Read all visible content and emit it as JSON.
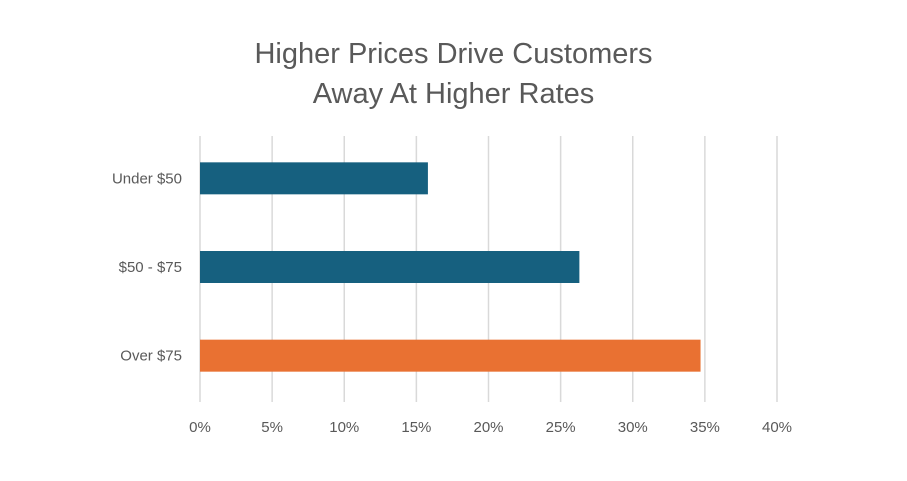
{
  "chart_data": {
    "type": "bar",
    "orientation": "horizontal",
    "title_lines": [
      "Higher Prices Drive Customers",
      "Away At Higher Rates"
    ],
    "categories": [
      "Under $50",
      "$50 - $75",
      "Over $75"
    ],
    "values": [
      15.8,
      26.3,
      34.7
    ],
    "bar_colors": [
      "#16607f",
      "#16607f",
      "#e97132"
    ],
    "xlim": [
      0,
      40
    ],
    "x_ticks": [
      0,
      5,
      10,
      15,
      20,
      25,
      30,
      35,
      40
    ],
    "x_tick_labels": [
      "0%",
      "5%",
      "10%",
      "15%",
      "20%",
      "25%",
      "30%",
      "35%",
      "40%"
    ],
    "grid": true,
    "grid_color": "#d9d9d9",
    "legend": "none"
  }
}
